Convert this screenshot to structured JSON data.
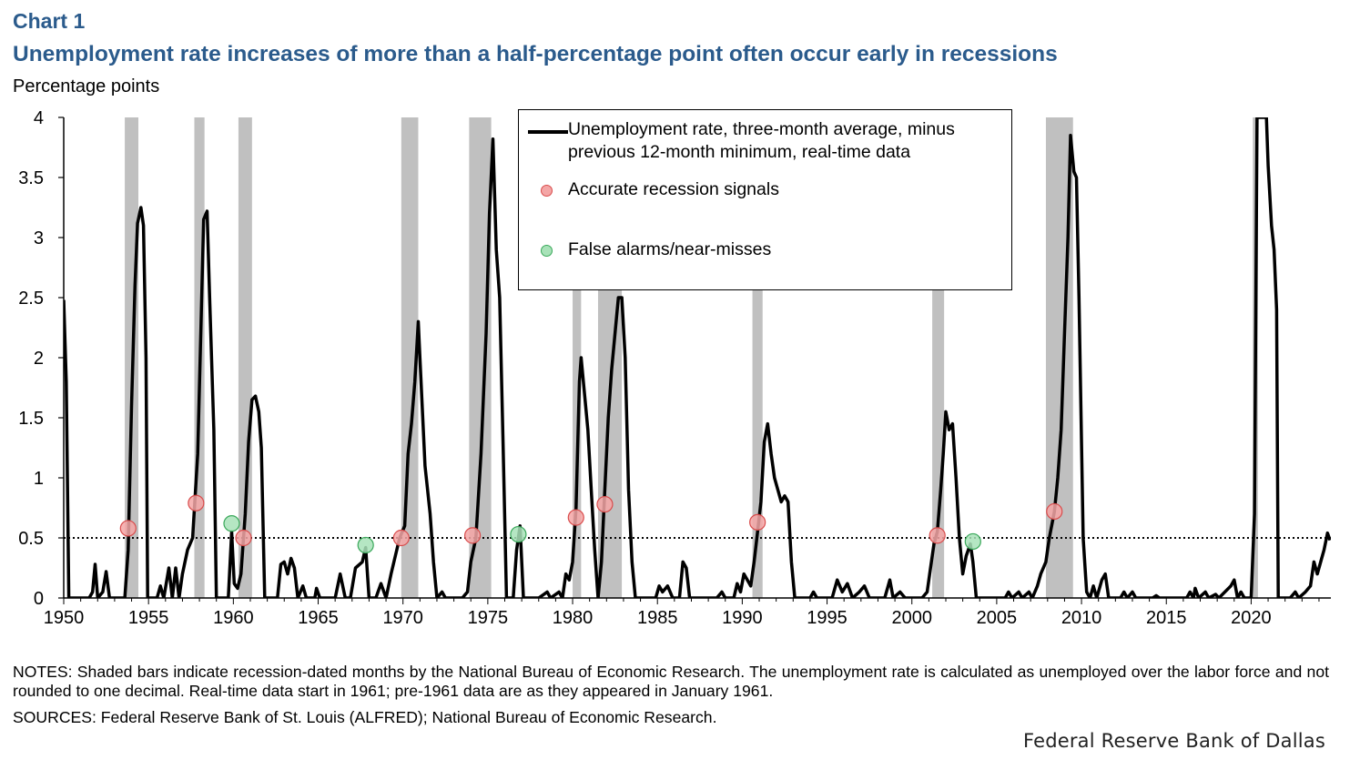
{
  "header": {
    "chart_label": "Chart 1",
    "title": "Unemployment rate increases of more than a half-percentage point often occur early in recessions",
    "unit": "Percentage points"
  },
  "legend": {
    "line_label_1": "Unemployment rate, three-month average, minus",
    "line_label_2": "previous 12-month minimum, real-time data",
    "accurate_label": "Accurate recession signals",
    "false_label": "False alarms/near-misses"
  },
  "footer": {
    "notes": "NOTES: Shaded bars indicate recession-dated months by the National Bureau of Economic Research. The unemployment rate is calculated as unemployed over the labor force and not rounded to one decimal. Real-time data start in 1961; pre-1961 data are as they appeared in January 1961.",
    "sources": "SOURCES: Federal Reserve Bank of St. Louis (ALFRED); National Bureau of Economic Research.",
    "brand": "Federal Reserve Bank of Dallas"
  },
  "colors": {
    "title": "#2b5b8c",
    "line": "#000000",
    "recession": "#c0c0c0",
    "accurate_fill": "#f4a6a6",
    "accurate_stroke": "#d94c4c",
    "false_fill": "#a8e2b8",
    "false_stroke": "#3aa85a"
  },
  "chart_data": {
    "type": "line",
    "xlim": [
      1950,
      2024.7
    ],
    "ylim": [
      0,
      4
    ],
    "x_ticks": [
      1950,
      1955,
      1960,
      1965,
      1970,
      1975,
      1980,
      1985,
      1990,
      1995,
      2000,
      2005,
      2010,
      2015,
      2020
    ],
    "y_ticks": [
      "0",
      "0.5",
      "1",
      "1.5",
      "2",
      "2.5",
      "3",
      "3.5",
      "4"
    ],
    "threshold": 0.5,
    "recessions": [
      [
        1953.6,
        1954.4
      ],
      [
        1957.7,
        1958.3
      ],
      [
        1960.3,
        1961.1
      ],
      [
        1969.9,
        1970.9
      ],
      [
        1973.9,
        1975.2
      ],
      [
        1980.0,
        1980.5
      ],
      [
        1981.5,
        1982.9
      ],
      [
        1990.6,
        1991.2
      ],
      [
        2001.2,
        2001.9
      ],
      [
        2007.9,
        2009.5
      ],
      [
        2020.1,
        2020.4
      ]
    ],
    "series": [
      {
        "name": "Unemployment rate, three-month average, minus previous 12-month minimum, real-time data",
        "points": [
          [
            1950.0,
            2.48
          ],
          [
            1950.15,
            1.8
          ],
          [
            1950.3,
            0.0
          ],
          [
            1951.5,
            0.0
          ],
          [
            1951.7,
            0.05
          ],
          [
            1951.85,
            0.28
          ],
          [
            1952.0,
            0.0
          ],
          [
            1952.3,
            0.05
          ],
          [
            1952.5,
            0.22
          ],
          [
            1952.7,
            0.0
          ],
          [
            1953.6,
            0.0
          ],
          [
            1953.8,
            0.4
          ],
          [
            1954.0,
            1.6
          ],
          [
            1954.2,
            2.6
          ],
          [
            1954.35,
            3.12
          ],
          [
            1954.55,
            3.25
          ],
          [
            1954.7,
            3.1
          ],
          [
            1954.85,
            2.0
          ],
          [
            1954.95,
            0.0
          ],
          [
            1955.5,
            0.0
          ],
          [
            1955.7,
            0.1
          ],
          [
            1955.9,
            0.0
          ],
          [
            1956.2,
            0.25
          ],
          [
            1956.4,
            0.0
          ],
          [
            1956.6,
            0.25
          ],
          [
            1956.8,
            0.0
          ],
          [
            1957.0,
            0.2
          ],
          [
            1957.3,
            0.4
          ],
          [
            1957.6,
            0.5
          ],
          [
            1957.9,
            1.2
          ],
          [
            1958.1,
            2.3
          ],
          [
            1958.25,
            3.15
          ],
          [
            1958.45,
            3.22
          ],
          [
            1958.6,
            2.5
          ],
          [
            1958.85,
            1.4
          ],
          [
            1959.0,
            0.0
          ],
          [
            1959.7,
            0.0
          ],
          [
            1959.9,
            0.55
          ],
          [
            1960.05,
            0.12
          ],
          [
            1960.25,
            0.08
          ],
          [
            1960.45,
            0.2
          ],
          [
            1960.7,
            0.7
          ],
          [
            1960.9,
            1.3
          ],
          [
            1961.1,
            1.65
          ],
          [
            1961.3,
            1.68
          ],
          [
            1961.5,
            1.55
          ],
          [
            1961.65,
            1.25
          ],
          [
            1961.85,
            0.0
          ],
          [
            1962.6,
            0.0
          ],
          [
            1962.8,
            0.28
          ],
          [
            1963.0,
            0.3
          ],
          [
            1963.2,
            0.2
          ],
          [
            1963.4,
            0.33
          ],
          [
            1963.6,
            0.25
          ],
          [
            1963.8,
            0.0
          ],
          [
            1964.1,
            0.1
          ],
          [
            1964.3,
            0.0
          ],
          [
            1964.8,
            0.0
          ],
          [
            1964.9,
            0.08
          ],
          [
            1965.1,
            0.0
          ],
          [
            1966.0,
            0.0
          ],
          [
            1966.3,
            0.2
          ],
          [
            1966.6,
            0.0
          ],
          [
            1966.9,
            0.0
          ],
          [
            1967.2,
            0.25
          ],
          [
            1967.6,
            0.3
          ],
          [
            1967.8,
            0.42
          ],
          [
            1968.0,
            0.0
          ],
          [
            1968.4,
            0.0
          ],
          [
            1968.7,
            0.12
          ],
          [
            1969.0,
            0.0
          ],
          [
            1969.3,
            0.2
          ],
          [
            1969.8,
            0.5
          ],
          [
            1970.1,
            0.6
          ],
          [
            1970.3,
            1.2
          ],
          [
            1970.5,
            1.45
          ],
          [
            1970.7,
            1.8
          ],
          [
            1970.9,
            2.3
          ],
          [
            1971.0,
            2.0
          ],
          [
            1971.3,
            1.1
          ],
          [
            1971.6,
            0.7
          ],
          [
            1971.8,
            0.3
          ],
          [
            1972.0,
            0.0
          ],
          [
            1972.3,
            0.05
          ],
          [
            1972.5,
            0.0
          ],
          [
            1973.5,
            0.0
          ],
          [
            1973.8,
            0.05
          ],
          [
            1974.0,
            0.3
          ],
          [
            1974.3,
            0.5
          ],
          [
            1974.6,
            1.2
          ],
          [
            1974.9,
            2.2
          ],
          [
            1975.1,
            3.2
          ],
          [
            1975.3,
            3.82
          ],
          [
            1975.5,
            2.9
          ],
          [
            1975.7,
            2.5
          ],
          [
            1975.9,
            1.3
          ],
          [
            1976.1,
            0.0
          ],
          [
            1976.5,
            0.0
          ],
          [
            1976.7,
            0.4
          ],
          [
            1976.9,
            0.6
          ],
          [
            1977.1,
            0.0
          ],
          [
            1978.0,
            0.0
          ],
          [
            1978.5,
            0.05
          ],
          [
            1978.7,
            0.0
          ],
          [
            1979.2,
            0.05
          ],
          [
            1979.4,
            0.0
          ],
          [
            1979.6,
            0.2
          ],
          [
            1979.8,
            0.15
          ],
          [
            1980.0,
            0.3
          ],
          [
            1980.2,
            0.75
          ],
          [
            1980.4,
            1.8
          ],
          [
            1980.5,
            2.0
          ],
          [
            1980.7,
            1.7
          ],
          [
            1980.9,
            1.4
          ],
          [
            1981.1,
            0.9
          ],
          [
            1981.3,
            0.4
          ],
          [
            1981.5,
            0.0
          ],
          [
            1981.7,
            0.3
          ],
          [
            1981.9,
            0.9
          ],
          [
            1982.1,
            1.5
          ],
          [
            1982.3,
            1.9
          ],
          [
            1982.5,
            2.2
          ],
          [
            1982.7,
            2.5
          ],
          [
            1982.9,
            2.5
          ],
          [
            1983.1,
            2.0
          ],
          [
            1983.3,
            0.9
          ],
          [
            1983.5,
            0.3
          ],
          [
            1983.7,
            0.0
          ],
          [
            1984.9,
            0.0
          ],
          [
            1985.1,
            0.1
          ],
          [
            1985.3,
            0.05
          ],
          [
            1985.6,
            0.1
          ],
          [
            1985.9,
            0.0
          ],
          [
            1986.3,
            0.0
          ],
          [
            1986.5,
            0.3
          ],
          [
            1986.7,
            0.25
          ],
          [
            1986.9,
            0.0
          ],
          [
            1987.3,
            0.0
          ],
          [
            1988.5,
            0.0
          ],
          [
            1988.8,
            0.05
          ],
          [
            1989.0,
            0.0
          ],
          [
            1989.5,
            0.0
          ],
          [
            1989.7,
            0.12
          ],
          [
            1989.9,
            0.05
          ],
          [
            1990.1,
            0.2
          ],
          [
            1990.3,
            0.15
          ],
          [
            1990.5,
            0.1
          ],
          [
            1990.7,
            0.3
          ],
          [
            1990.9,
            0.55
          ],
          [
            1991.1,
            0.8
          ],
          [
            1991.3,
            1.3
          ],
          [
            1991.5,
            1.45
          ],
          [
            1991.7,
            1.2
          ],
          [
            1991.9,
            1.0
          ],
          [
            1992.1,
            0.9
          ],
          [
            1992.3,
            0.8
          ],
          [
            1992.5,
            0.85
          ],
          [
            1992.7,
            0.8
          ],
          [
            1992.9,
            0.3
          ],
          [
            1993.1,
            0.0
          ],
          [
            1994.0,
            0.0
          ],
          [
            1994.2,
            0.05
          ],
          [
            1994.4,
            0.0
          ],
          [
            1995.3,
            0.0
          ],
          [
            1995.6,
            0.15
          ],
          [
            1995.9,
            0.05
          ],
          [
            1996.2,
            0.12
          ],
          [
            1996.5,
            0.0
          ],
          [
            1996.9,
            0.05
          ],
          [
            1997.2,
            0.1
          ],
          [
            1997.5,
            0.0
          ],
          [
            1998.4,
            0.0
          ],
          [
            1998.7,
            0.15
          ],
          [
            1998.9,
            0.0
          ],
          [
            1999.3,
            0.05
          ],
          [
            1999.6,
            0.0
          ],
          [
            2000.6,
            0.0
          ],
          [
            2000.9,
            0.05
          ],
          [
            2001.1,
            0.25
          ],
          [
            2001.3,
            0.45
          ],
          [
            2001.5,
            0.55
          ],
          [
            2001.7,
            0.9
          ],
          [
            2001.85,
            1.2
          ],
          [
            2002.0,
            1.55
          ],
          [
            2002.2,
            1.4
          ],
          [
            2002.4,
            1.45
          ],
          [
            2002.6,
            1.0
          ],
          [
            2002.8,
            0.5
          ],
          [
            2003.0,
            0.2
          ],
          [
            2003.2,
            0.35
          ],
          [
            2003.45,
            0.45
          ],
          [
            2003.6,
            0.3
          ],
          [
            2003.8,
            0.0
          ],
          [
            2005.5,
            0.0
          ],
          [
            2005.7,
            0.05
          ],
          [
            2005.9,
            0.0
          ],
          [
            2006.3,
            0.05
          ],
          [
            2006.5,
            0.0
          ],
          [
            2006.9,
            0.05
          ],
          [
            2007.1,
            0.0
          ],
          [
            2007.4,
            0.1
          ],
          [
            2007.6,
            0.2
          ],
          [
            2007.9,
            0.3
          ],
          [
            2008.1,
            0.5
          ],
          [
            2008.4,
            0.72
          ],
          [
            2008.6,
            1.0
          ],
          [
            2008.8,
            1.4
          ],
          [
            2009.0,
            2.2
          ],
          [
            2009.2,
            3.0
          ],
          [
            2009.35,
            3.85
          ],
          [
            2009.55,
            3.55
          ],
          [
            2009.7,
            3.5
          ],
          [
            2009.85,
            2.5
          ],
          [
            2010.1,
            0.5
          ],
          [
            2010.3,
            0.05
          ],
          [
            2010.5,
            0.0
          ],
          [
            2010.7,
            0.1
          ],
          [
            2010.9,
            0.0
          ],
          [
            2011.2,
            0.15
          ],
          [
            2011.4,
            0.2
          ],
          [
            2011.6,
            0.0
          ],
          [
            2012.3,
            0.0
          ],
          [
            2012.5,
            0.05
          ],
          [
            2012.7,
            0.0
          ],
          [
            2013.0,
            0.05
          ],
          [
            2013.2,
            0.0
          ],
          [
            2014.2,
            0.0
          ],
          [
            2014.4,
            0.02
          ],
          [
            2014.6,
            0.0
          ],
          [
            2016.2,
            0.0
          ],
          [
            2016.4,
            0.05
          ],
          [
            2016.6,
            0.0
          ],
          [
            2016.7,
            0.08
          ],
          [
            2016.9,
            0.0
          ],
          [
            2017.3,
            0.05
          ],
          [
            2017.5,
            0.0
          ],
          [
            2017.9,
            0.03
          ],
          [
            2018.1,
            0.0
          ],
          [
            2018.8,
            0.1
          ],
          [
            2019.0,
            0.15
          ],
          [
            2019.2,
            0.0
          ],
          [
            2019.4,
            0.05
          ],
          [
            2019.6,
            0.0
          ],
          [
            2020.0,
            0.0
          ],
          [
            2020.2,
            0.7
          ],
          [
            2020.35,
            4.0
          ],
          [
            2020.9,
            4.0
          ],
          [
            2021.0,
            3.6
          ],
          [
            2021.2,
            3.1
          ],
          [
            2021.35,
            2.9
          ],
          [
            2021.5,
            2.4
          ],
          [
            2021.6,
            0.0
          ],
          [
            2022.3,
            0.0
          ],
          [
            2022.6,
            0.05
          ],
          [
            2022.8,
            0.0
          ],
          [
            2023.2,
            0.05
          ],
          [
            2023.5,
            0.1
          ],
          [
            2023.7,
            0.3
          ],
          [
            2023.9,
            0.2
          ],
          [
            2024.1,
            0.3
          ],
          [
            2024.3,
            0.4
          ],
          [
            2024.5,
            0.54
          ],
          [
            2024.65,
            0.48
          ]
        ]
      }
    ],
    "accurate_signals": [
      [
        1953.8,
        0.58
      ],
      [
        1957.8,
        0.79
      ],
      [
        1960.6,
        0.5
      ],
      [
        1969.9,
        0.5
      ],
      [
        1974.1,
        0.52
      ],
      [
        1980.2,
        0.67
      ],
      [
        1981.9,
        0.78
      ],
      [
        1990.9,
        0.63
      ],
      [
        2001.5,
        0.52
      ],
      [
        2008.4,
        0.72
      ]
    ],
    "false_alarms": [
      [
        1959.9,
        0.62
      ],
      [
        1967.8,
        0.44
      ],
      [
        1976.8,
        0.53
      ],
      [
        2003.6,
        0.47
      ]
    ]
  }
}
